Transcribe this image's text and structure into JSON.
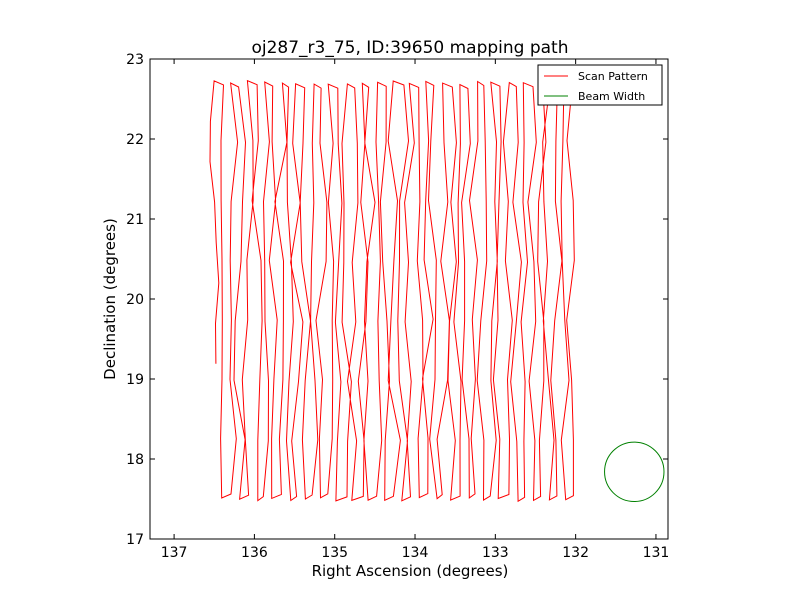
{
  "chart_data": {
    "type": "line",
    "title": "oj287_r3_75, ID:39650 mapping path",
    "xlabel": "Right Ascension (degrees)",
    "ylabel": "Declination (degrees)",
    "xlim": [
      137.3,
      130.85
    ],
    "ylim": [
      17,
      23
    ],
    "x_ticks": [
      137,
      136,
      135,
      134,
      133,
      132,
      131
    ],
    "y_ticks": [
      17,
      18,
      19,
      20,
      21,
      22,
      23
    ],
    "grid": false,
    "legend_position": "upper right",
    "scan_pattern": {
      "name": "Scan Pattern",
      "color": "#ff0000",
      "ra_start": 136.48,
      "ra_step": 0.101,
      "columns": 45,
      "dec_min": 17.47,
      "dec_max": 22.73,
      "dec_start": 19.19
    },
    "beam": {
      "name": "Beam Width",
      "color": "#008000",
      "center_ra": 131.27,
      "center_dec": 17.84,
      "radius_deg": 0.37
    }
  }
}
